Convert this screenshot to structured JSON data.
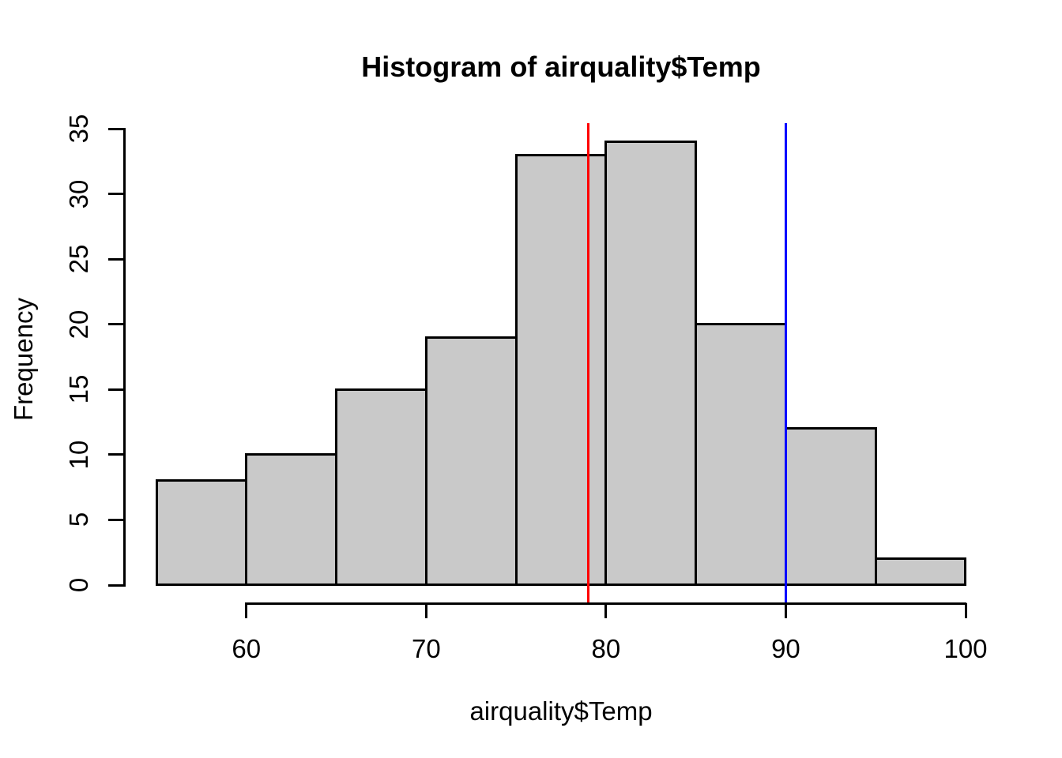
{
  "chart_data": {
    "type": "bar",
    "subtype": "histogram",
    "title": "Histogram of airquality$Temp",
    "xlabel": "airquality$Temp",
    "ylabel": "Frequency",
    "bin_edges": [
      55,
      60,
      65,
      70,
      75,
      80,
      85,
      90,
      95,
      100
    ],
    "counts": [
      8,
      10,
      15,
      19,
      33,
      34,
      20,
      12,
      2
    ],
    "xticks": [
      60,
      70,
      80,
      90,
      100
    ],
    "yticks": [
      0,
      5,
      10,
      15,
      20,
      25,
      30,
      35
    ],
    "xlim": [
      55,
      100
    ],
    "ylim": [
      0,
      35
    ],
    "grid": "off",
    "legend": "none",
    "bar_fill_color": "#C9C9C9",
    "bar_border_color": "#000000",
    "axis_color": "#000000",
    "vlines": [
      {
        "x": 79,
        "color": "#FF0000",
        "name": "red-vline"
      },
      {
        "x": 90,
        "color": "#0000FF",
        "name": "blue-vline"
      }
    ]
  }
}
